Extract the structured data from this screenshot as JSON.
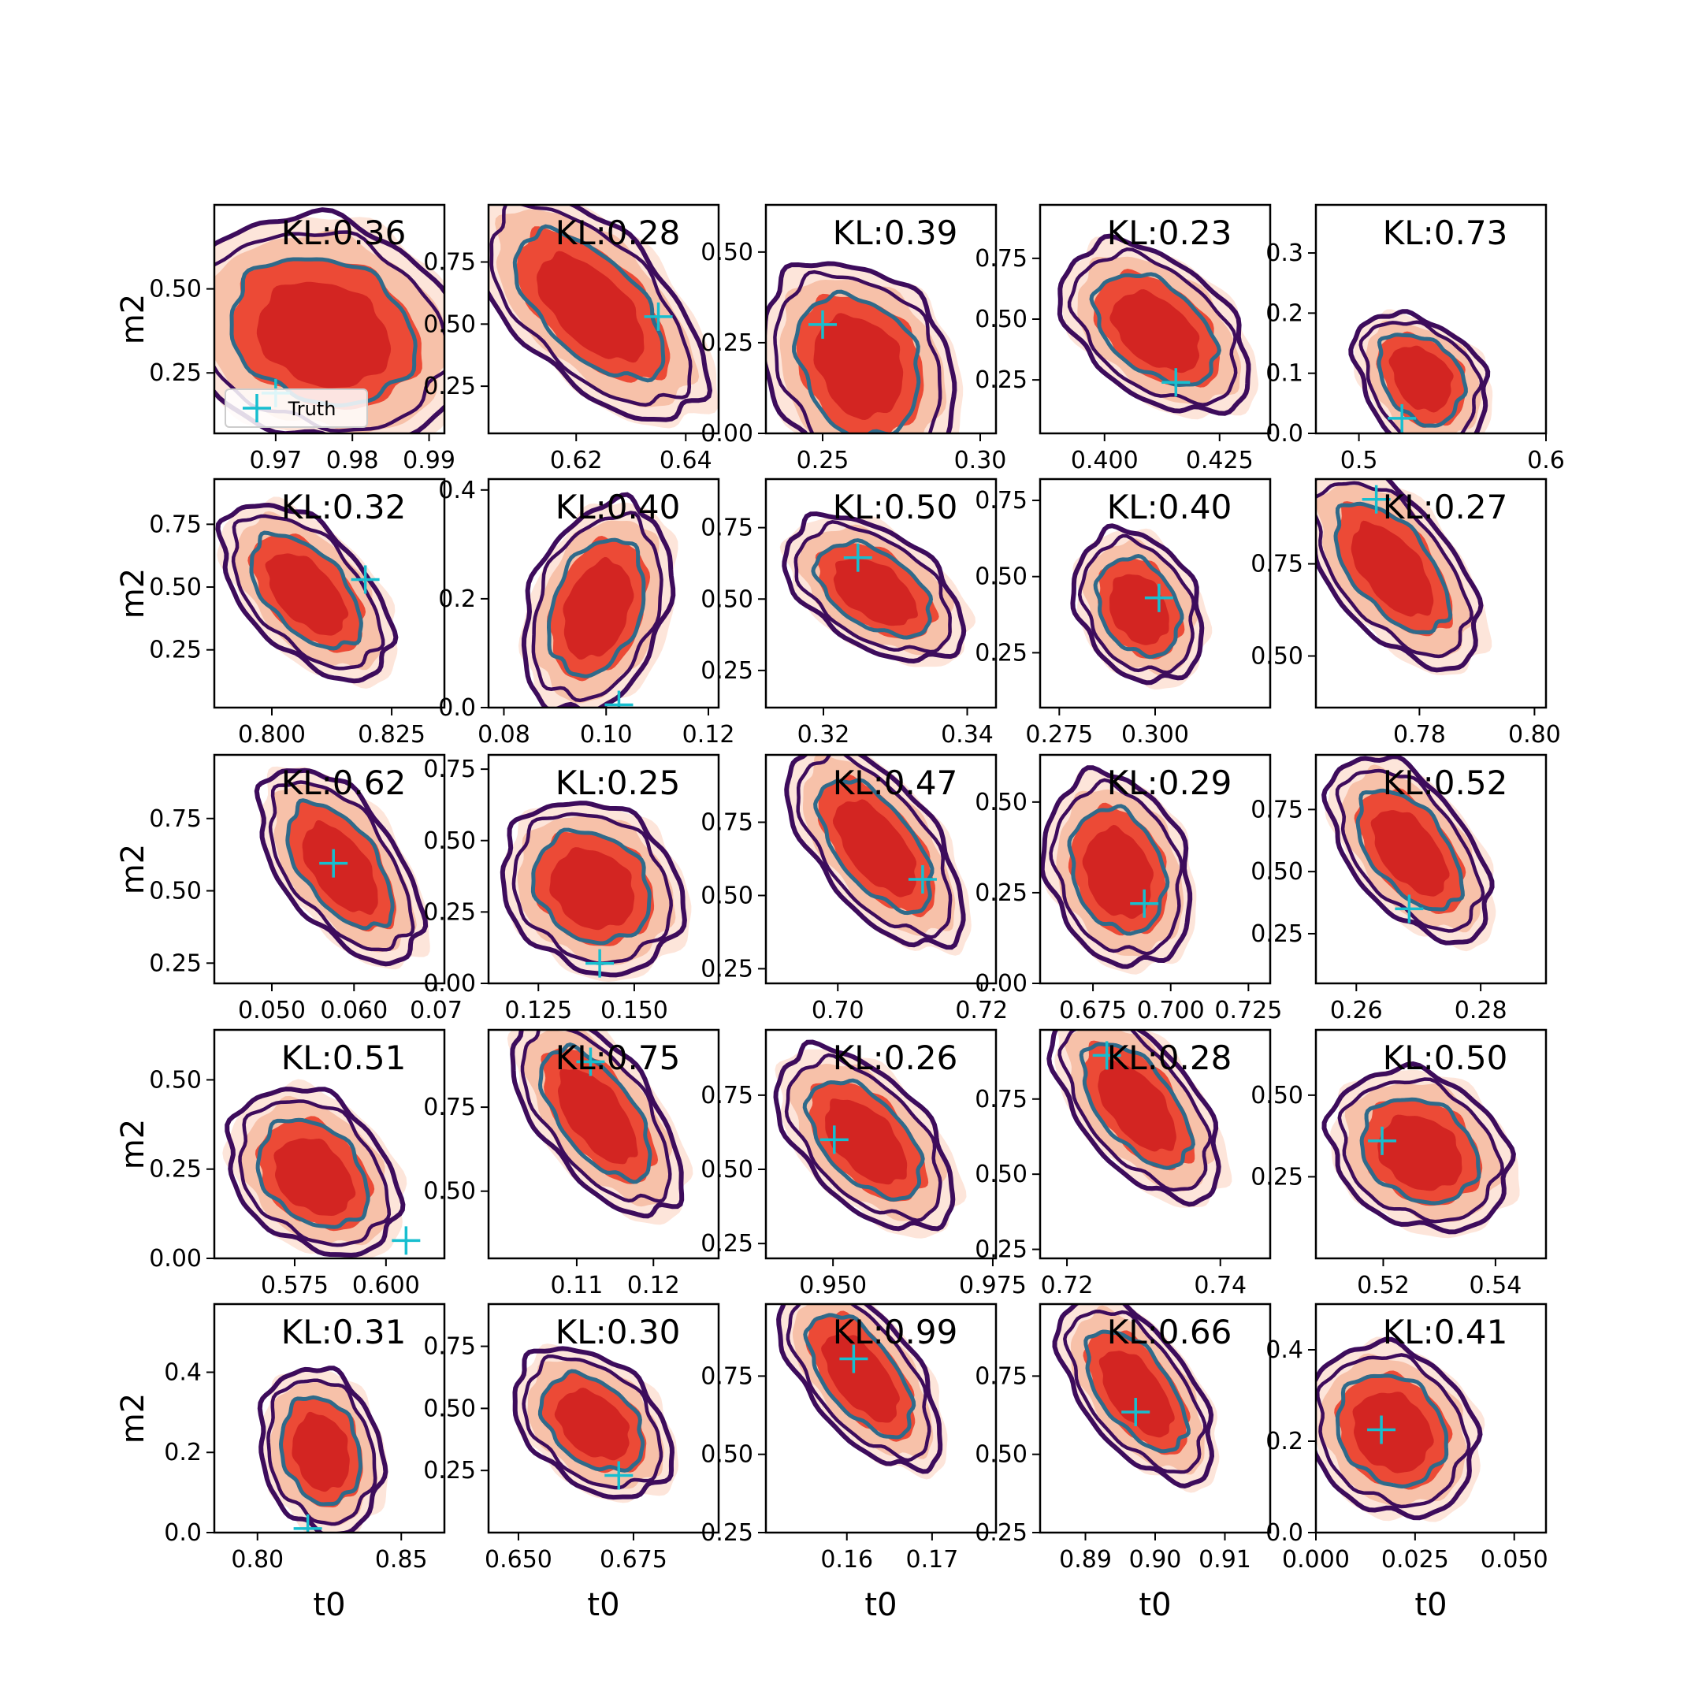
{
  "chart_data": {
    "type": "contour-grid",
    "rows": 5,
    "cols": 5,
    "xlabel": "t0",
    "ylabel": "m2",
    "kl_prefix": "KL:",
    "legend": {
      "label": "Truth",
      "placement": "lower-left",
      "panel": 0
    },
    "colors": {
      "fill_outer": "#fde5da",
      "fill_mid2": "#f7c1a9",
      "fill_mid": "#ec4a36",
      "fill_core": "#cf1f1e",
      "line_outer": "#3d0c5c",
      "line_inner": "#2f6a8a",
      "truth": "#17becf"
    },
    "panels": [
      {
        "kl": "0.36",
        "xlim": [
          0.962,
          0.992
        ],
        "ylim": [
          0.07,
          0.75
        ],
        "xticks": [
          0.97,
          0.98,
          0.99
        ],
        "xtick_labels": [
          "0.97",
          "0.98",
          "0.99"
        ],
        "yticks": [
          0.25,
          0.5
        ],
        "ytick_labels": [
          "0.25",
          "0.50"
        ],
        "truth": [
          0.97,
          0.19
        ],
        "center": [
          0.9765,
          0.36
        ],
        "sx": 0.0083,
        "sy": 0.18,
        "rho": -0.2,
        "skew": 0.1
      },
      {
        "kl": "0.28",
        "xlim": [
          0.604,
          0.646
        ],
        "ylim": [
          0.06,
          0.98
        ],
        "xticks": [
          0.62,
          0.64
        ],
        "xtick_labels": [
          "0.62",
          "0.64"
        ],
        "yticks": [
          0.25,
          0.5,
          0.75
        ],
        "ytick_labels": [
          "0.25",
          "0.50",
          "0.75"
        ],
        "truth": [
          0.635,
          0.53
        ],
        "center": [
          0.623,
          0.56
        ],
        "sx": 0.0105,
        "sy": 0.2,
        "rho": -0.82,
        "skew": 0.1
      },
      {
        "kl": "0.39",
        "xlim": [
          0.232,
          0.305
        ],
        "ylim": [
          0.0,
          0.63
        ],
        "xticks": [
          0.25,
          0.3
        ],
        "xtick_labels": [
          "0.25",
          "0.30"
        ],
        "yticks": [
          0.0,
          0.25,
          0.5
        ],
        "ytick_labels": [
          "0.00",
          "0.25",
          "0.50"
        ],
        "truth": [
          0.25,
          0.3
        ],
        "center": [
          0.262,
          0.2
        ],
        "sx": 0.0135,
        "sy": 0.16,
        "rho": -0.25,
        "skew": -0.4
      },
      {
        "kl": "0.23",
        "xlim": [
          0.386,
          0.436
        ],
        "ylim": [
          0.03,
          0.97
        ],
        "xticks": [
          0.4,
          0.425
        ],
        "xtick_labels": [
          "0.400",
          "0.425"
        ],
        "yticks": [
          0.25,
          0.5,
          0.75
        ],
        "ytick_labels": [
          "0.25",
          "0.50",
          "0.75"
        ],
        "truth": [
          0.4155,
          0.24
        ],
        "center": [
          0.4115,
          0.44
        ],
        "sx": 0.0095,
        "sy": 0.17,
        "rho": -0.55,
        "skew": 0.2
      },
      {
        "kl": "0.73",
        "xlim": [
          0.477,
          0.6
        ],
        "ylim": [
          0.0,
          0.38
        ],
        "xticks": [
          0.5,
          0.6
        ],
        "xtick_labels": [
          "0.5",
          "0.6"
        ],
        "yticks": [
          0.0,
          0.1,
          0.2,
          0.3
        ],
        "ytick_labels": [
          "0.0",
          "0.1",
          "0.2",
          "0.3"
        ],
        "truth": [
          0.523,
          0.025
        ],
        "center": [
          0.534,
          0.1
        ],
        "sx": 0.016,
        "sy": 0.06,
        "rho": -0.35,
        "skew": -0.6
      },
      {
        "kl": "0.32",
        "xlim": [
          0.788,
          0.836
        ],
        "ylim": [
          0.02,
          0.93
        ],
        "xticks": [
          0.8,
          0.825
        ],
        "xtick_labels": [
          "0.800",
          "0.825"
        ],
        "yticks": [
          0.25,
          0.5,
          0.75
        ],
        "ytick_labels": [
          "0.25",
          "0.50",
          "0.75"
        ],
        "truth": [
          0.8195,
          0.53
        ],
        "center": [
          0.8075,
          0.47
        ],
        "sx": 0.0085,
        "sy": 0.16,
        "rho": -0.7,
        "skew": 0.1
      },
      {
        "kl": "0.40",
        "xlim": [
          0.077,
          0.122
        ],
        "ylim": [
          0.0,
          0.42
        ],
        "xticks": [
          0.08,
          0.1,
          0.12
        ],
        "xtick_labels": [
          "0.08",
          "0.10",
          "0.12"
        ],
        "yticks": [
          0.0,
          0.2,
          0.4
        ],
        "ytick_labels": [
          "0.0",
          "0.2",
          "0.4"
        ],
        "truth": [
          0.1025,
          0.005
        ],
        "center": [
          0.0985,
          0.18
        ],
        "sx": 0.0065,
        "sy": 0.1,
        "rho": 0.35,
        "skew": 0.0
      },
      {
        "kl": "0.50",
        "xlim": [
          0.312,
          0.344
        ],
        "ylim": [
          0.12,
          0.92
        ],
        "xticks": [
          0.32,
          0.34
        ],
        "xtick_labels": [
          "0.32",
          "0.34"
        ],
        "yticks": [
          0.25,
          0.5,
          0.75
        ],
        "ytick_labels": [
          "0.25",
          "0.50",
          "0.75"
        ],
        "truth": [
          0.3248,
          0.645
        ],
        "center": [
          0.3273,
          0.52
        ],
        "sx": 0.0058,
        "sy": 0.12,
        "rho": -0.6,
        "skew": 0.2
      },
      {
        "kl": "0.40",
        "xlim": [
          0.27,
          0.33
        ],
        "ylim": [
          0.07,
          0.82
        ],
        "xticks": [
          0.275,
          0.3
        ],
        "xtick_labels": [
          "0.275",
          "0.300"
        ],
        "yticks": [
          0.25,
          0.5,
          0.75
        ],
        "ytick_labels": [
          "0.25",
          "0.50",
          "0.75"
        ],
        "truth": [
          0.301,
          0.43
        ],
        "center": [
          0.296,
          0.39
        ],
        "sx": 0.0075,
        "sy": 0.13,
        "rho": -0.3,
        "skew": 0.1
      },
      {
        "kl": "0.27",
        "xlim": [
          0.762,
          0.802
        ],
        "ylim": [
          0.36,
          0.98
        ],
        "xticks": [
          0.78,
          0.8
        ],
        "xtick_labels": [
          "0.78",
          "0.80"
        ],
        "yticks": [
          0.5,
          0.75
        ],
        "ytick_labels": [
          "0.50",
          "0.75"
        ],
        "truth": [
          0.7725,
          0.925
        ],
        "center": [
          0.7755,
          0.73
        ],
        "sx": 0.0075,
        "sy": 0.12,
        "rho": -0.78,
        "skew": 0.1
      },
      {
        "kl": "0.62",
        "xlim": [
          0.043,
          0.071
        ],
        "ylim": [
          0.18,
          0.97
        ],
        "xticks": [
          0.05,
          0.06,
          0.07
        ],
        "xtick_labels": [
          "0.050",
          "0.060",
          "0.07"
        ],
        "yticks": [
          0.25,
          0.5,
          0.75
        ],
        "ytick_labels": [
          "0.25",
          "0.50",
          "0.75"
        ],
        "truth": [
          0.0575,
          0.595
        ],
        "center": [
          0.0585,
          0.57
        ],
        "sx": 0.0048,
        "sy": 0.15,
        "rho": -0.75,
        "skew": 0.2
      },
      {
        "kl": "0.25",
        "xlim": [
          0.112,
          0.172
        ],
        "ylim": [
          0.0,
          0.8
        ],
        "xticks": [
          0.125,
          0.15
        ],
        "xtick_labels": [
          "0.125",
          "0.150"
        ],
        "yticks": [
          0.0,
          0.25,
          0.5,
          0.75
        ],
        "ytick_labels": [
          "0.00",
          "0.25",
          "0.50",
          "0.75"
        ],
        "truth": [
          0.141,
          0.07
        ],
        "center": [
          0.1395,
          0.33
        ],
        "sx": 0.0105,
        "sy": 0.16,
        "rho": -0.2,
        "skew": 0.0
      },
      {
        "kl": "0.47",
        "xlim": [
          0.69,
          0.722
        ],
        "ylim": [
          0.2,
          0.98
        ],
        "xticks": [
          0.7,
          0.72
        ],
        "xtick_labels": [
          "0.70",
          "0.72"
        ],
        "yticks": [
          0.25,
          0.5,
          0.75
        ],
        "ytick_labels": [
          "0.25",
          "0.50",
          "0.75"
        ],
        "truth": [
          0.7118,
          0.555
        ],
        "center": [
          0.7055,
          0.66
        ],
        "sx": 0.0062,
        "sy": 0.15,
        "rho": -0.85,
        "skew": 0.1
      },
      {
        "kl": "0.29",
        "xlim": [
          0.658,
          0.732
        ],
        "ylim": [
          0.0,
          0.63
        ],
        "xticks": [
          0.675,
          0.7,
          0.725
        ],
        "xtick_labels": [
          "0.675",
          "0.700",
          "0.725"
        ],
        "yticks": [
          0.0,
          0.25,
          0.5
        ],
        "ytick_labels": [
          "0.00",
          "0.25",
          "0.50"
        ],
        "truth": [
          0.6915,
          0.22
        ],
        "center": [
          0.6835,
          0.3
        ],
        "sx": 0.0105,
        "sy": 0.14,
        "rho": -0.25,
        "skew": 0.1
      },
      {
        "kl": "0.52",
        "xlim": [
          0.2535,
          0.2905
        ],
        "ylim": [
          0.05,
          0.97
        ],
        "xticks": [
          0.26,
          0.28
        ],
        "xtick_labels": [
          "0.26",
          "0.28"
        ],
        "yticks": [
          0.25,
          0.5,
          0.75
        ],
        "ytick_labels": [
          "0.25",
          "0.50",
          "0.75"
        ],
        "truth": [
          0.2685,
          0.35
        ],
        "center": [
          0.2688,
          0.57
        ],
        "sx": 0.0062,
        "sy": 0.17,
        "rho": -0.7,
        "skew": 0.2
      },
      {
        "kl": "0.51",
        "xlim": [
          0.553,
          0.616
        ],
        "ylim": [
          0.0,
          0.64
        ],
        "xticks": [
          0.575,
          0.6
        ],
        "xtick_labels": [
          "0.575",
          "0.600"
        ],
        "yticks": [
          0.0,
          0.25,
          0.5
        ],
        "ytick_labels": [
          "0.00",
          "0.25",
          "0.50"
        ],
        "truth": [
          0.6055,
          0.05
        ],
        "center": [
          0.5805,
          0.22
        ],
        "sx": 0.0105,
        "sy": 0.12,
        "rho": -0.35,
        "skew": 0.3
      },
      {
        "kl": "0.75",
        "xlim": [
          0.0985,
          0.1285
        ],
        "ylim": [
          0.3,
          0.98
        ],
        "xticks": [
          0.11,
          0.12
        ],
        "xtick_labels": [
          "0.11",
          "0.12"
        ],
        "yticks": [
          0.5,
          0.75
        ],
        "ytick_labels": [
          "0.50",
          "0.75"
        ],
        "truth": [
          0.1118,
          0.885
        ],
        "center": [
          0.1128,
          0.72
        ],
        "sx": 0.0056,
        "sy": 0.13,
        "rho": -0.85,
        "skew": 0.1
      },
      {
        "kl": "0.26",
        "xlim": [
          0.9395,
          0.9755
        ],
        "ylim": [
          0.2,
          0.97
        ],
        "xticks": [
          0.95,
          0.975
        ],
        "xtick_labels": [
          "0.950",
          "0.975"
        ],
        "yticks": [
          0.25,
          0.5,
          0.75
        ],
        "ytick_labels": [
          "0.25",
          "0.50",
          "0.75"
        ],
        "truth": [
          0.9502,
          0.6
        ],
        "center": [
          0.9553,
          0.59
        ],
        "sx": 0.0066,
        "sy": 0.14,
        "rho": -0.7,
        "skew": 0.1
      },
      {
        "kl": "0.28",
        "xlim": [
          0.7165,
          0.7465
        ],
        "ylim": [
          0.22,
          0.98
        ],
        "xticks": [
          0.72,
          0.74
        ],
        "xtick_labels": [
          "0.72",
          "0.74"
        ],
        "yticks": [
          0.25,
          0.5,
          0.75
        ],
        "ytick_labels": [
          "0.25",
          "0.50",
          "0.75"
        ],
        "truth": [
          0.7252,
          0.895
        ],
        "center": [
          0.7293,
          0.72
        ],
        "sx": 0.0054,
        "sy": 0.14,
        "rho": -0.8,
        "skew": 0.1
      },
      {
        "kl": "0.50",
        "xlim": [
          0.508,
          0.549
        ],
        "ylim": [
          0.0,
          0.7
        ],
        "xticks": [
          0.52,
          0.54
        ],
        "xtick_labels": [
          "0.52",
          "0.54"
        ],
        "yticks": [
          0.25,
          0.5
        ],
        "ytick_labels": [
          "0.25",
          "0.50"
        ],
        "truth": [
          0.5198,
          0.36
        ],
        "center": [
          0.5268,
          0.32
        ],
        "sx": 0.0072,
        "sy": 0.13,
        "rho": -0.25,
        "skew": 0.1
      },
      {
        "kl": "0.31",
        "xlim": [
          0.785,
          0.865
        ],
        "ylim": [
          0.0,
          0.57
        ],
        "xticks": [
          0.8,
          0.85
        ],
        "xtick_labels": [
          "0.80",
          "0.85"
        ],
        "yticks": [
          0.0,
          0.2,
          0.4
        ],
        "ytick_labels": [
          "0.0",
          "0.2",
          "0.4"
        ],
        "truth": [
          0.8175,
          0.01
        ],
        "center": [
          0.8225,
          0.2
        ],
        "sx": 0.0095,
        "sy": 0.11,
        "rho": -0.2,
        "skew": 0.0
      },
      {
        "kl": "0.30",
        "xlim": [
          0.6435,
          0.6935
        ],
        "ylim": [
          0.0,
          0.92
        ],
        "xticks": [
          0.65,
          0.675
        ],
        "xtick_labels": [
          "0.650",
          "0.675"
        ],
        "yticks": [
          0.25,
          0.5,
          0.75
        ],
        "ytick_labels": [
          "0.25",
          "0.50",
          "0.75"
        ],
        "truth": [
          0.6718,
          0.23
        ],
        "center": [
          0.6665,
          0.43
        ],
        "sx": 0.0078,
        "sy": 0.15,
        "rho": -0.45,
        "skew": 0.1
      },
      {
        "kl": "0.99",
        "xlim": [
          0.1505,
          0.1775
        ],
        "ylim": [
          0.25,
          0.98
        ],
        "xticks": [
          0.16,
          0.17
        ],
        "xtick_labels": [
          "0.16",
          "0.17"
        ],
        "yticks": [
          0.25,
          0.5,
          0.75
        ],
        "ytick_labels": [
          "0.25",
          "0.50",
          "0.75"
        ],
        "truth": [
          0.1608,
          0.805
        ],
        "center": [
          0.1618,
          0.74
        ],
        "sx": 0.0048,
        "sy": 0.13,
        "rho": -0.85,
        "skew": 0.2
      },
      {
        "kl": "0.66",
        "xlim": [
          0.8835,
          0.9165
        ],
        "ylim": [
          0.25,
          0.98
        ],
        "xticks": [
          0.89,
          0.9,
          0.91
        ],
        "xtick_labels": [
          "0.89",
          "0.90",
          "0.91"
        ],
        "yticks": [
          0.25,
          0.5,
          0.75
        ],
        "ytick_labels": [
          "0.25",
          "0.50",
          "0.75"
        ],
        "truth": [
          0.8972,
          0.635
        ],
        "center": [
          0.8975,
          0.69
        ],
        "sx": 0.0055,
        "sy": 0.13,
        "rho": -0.8,
        "skew": 0.2
      },
      {
        "kl": "0.41",
        "xlim": [
          0.0,
          0.058
        ],
        "ylim": [
          0.0,
          0.5
        ],
        "xticks": [
          0.0,
          0.025,
          0.05
        ],
        "xtick_labels": [
          "0.000",
          "0.025",
          "0.050"
        ],
        "yticks": [
          0.0,
          0.2,
          0.4
        ],
        "ytick_labels": [
          "0.0",
          "0.2",
          "0.4"
        ],
        "truth": [
          0.0165,
          0.225
        ],
        "center": [
          0.0195,
          0.22
        ],
        "sx": 0.0095,
        "sy": 0.1,
        "rho": -0.2,
        "skew": 0.0
      }
    ]
  }
}
